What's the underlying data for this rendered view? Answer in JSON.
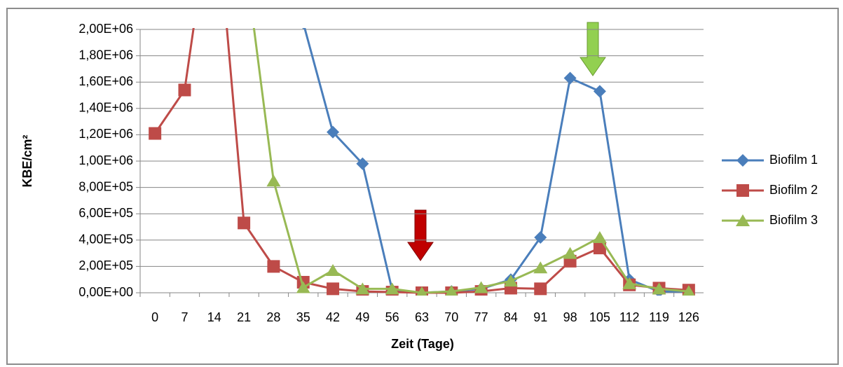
{
  "chart_data": {
    "type": "line",
    "y_label": "KBE/cm²",
    "x_label": "Zeit (Tage)",
    "categories": [
      "0",
      "7",
      "14",
      "21",
      "28",
      "35",
      "42",
      "49",
      "56",
      "63",
      "70",
      "77",
      "84",
      "91",
      "98",
      "105",
      "112",
      "119",
      "126"
    ],
    "series": [
      {
        "name": "Biofilm 1",
        "color": "#4a7ebb",
        "marker": "diamond",
        "values": [
          null,
          null,
          null,
          null,
          null,
          2050000,
          1220000,
          980000,
          20000,
          0,
          10000,
          30000,
          100000,
          420000,
          1630000,
          1530000,
          100000,
          10000,
          10000
        ]
      },
      {
        "name": "Biofilm 2",
        "color": "#be4b48",
        "marker": "square",
        "values": [
          1210000,
          1540000,
          3100000,
          530000,
          200000,
          80000,
          30000,
          10000,
          5000,
          0,
          0,
          10000,
          35000,
          30000,
          240000,
          340000,
          60000,
          35000,
          20000
        ]
      },
      {
        "name": "Biofilm 3",
        "color": "#98b954",
        "marker": "triangle",
        "values": [
          null,
          null,
          null,
          2600000,
          850000,
          40000,
          170000,
          30000,
          30000,
          0,
          10000,
          40000,
          90000,
          190000,
          300000,
          420000,
          70000,
          30000,
          10000
        ]
      }
    ],
    "ylim": [
      0,
      2000000
    ],
    "yticks": [
      {
        "value": 0,
        "label": "0,00E+00"
      },
      {
        "value": 200000,
        "label": "2,00E+05"
      },
      {
        "value": 400000,
        "label": "4,00E+05"
      },
      {
        "value": 600000,
        "label": "6,00E+05"
      },
      {
        "value": 800000,
        "label": "8,00E+05"
      },
      {
        "value": 1000000,
        "label": "1,00E+06"
      },
      {
        "value": 1200000,
        "label": "1,20E+06"
      },
      {
        "value": 1400000,
        "label": "1,40E+06"
      },
      {
        "value": 1600000,
        "label": "1,60E+06"
      },
      {
        "value": 1800000,
        "label": "1,80E+06"
      },
      {
        "value": 2000000,
        "label": "2,00E+06"
      }
    ],
    "grid": true,
    "legend": "right"
  }
}
